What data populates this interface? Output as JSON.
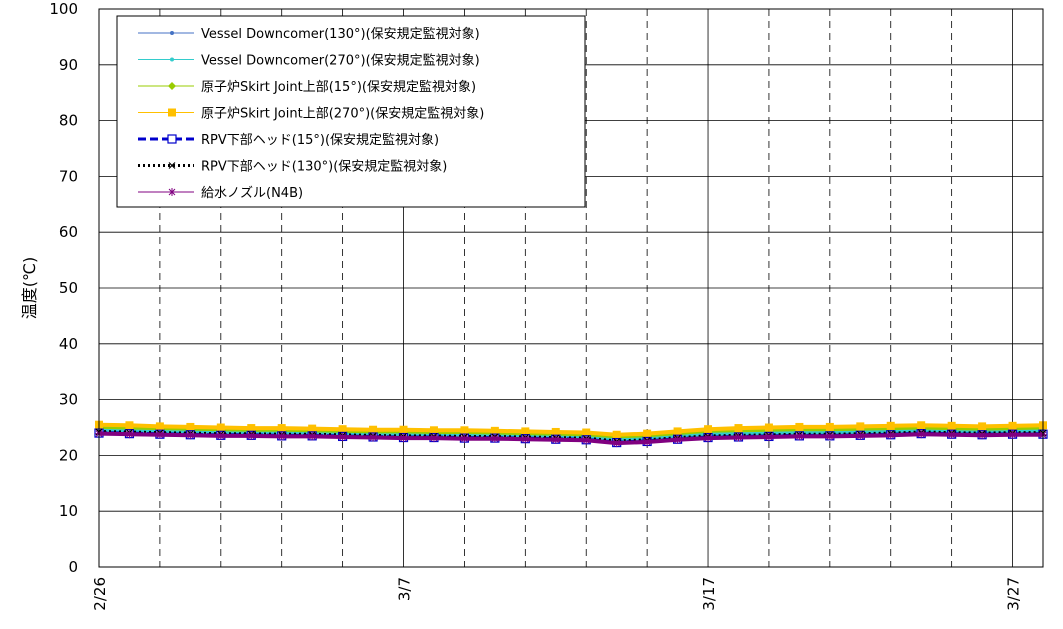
{
  "chart_data": {
    "type": "line",
    "title": "",
    "xlabel": "",
    "ylabel": "温度(℃)",
    "ylim": [
      0,
      100
    ],
    "y_ticks": [
      0,
      10,
      20,
      30,
      40,
      50,
      60,
      70,
      80,
      90,
      100
    ],
    "x_tick_labels": [
      {
        "date": "2/26",
        "label": "2/26"
      },
      {
        "date": "3/7",
        "label": "3/7"
      },
      {
        "date": "3/17",
        "label": "3/17"
      },
      {
        "date": "3/27",
        "label": "3/27"
      }
    ],
    "x_range": [
      "2/26",
      "3/28"
    ],
    "grid": {
      "horizontal": "solid",
      "vertical_major": "solid",
      "vertical_minor": "dashed"
    },
    "legend_position": "top-left",
    "x": [
      "2/26",
      "2/27",
      "2/28",
      "2/29",
      "3/1",
      "3/2",
      "3/3",
      "3/4",
      "3/5",
      "3/6",
      "3/7",
      "3/8",
      "3/9",
      "3/10",
      "3/11",
      "3/12",
      "3/13",
      "3/14",
      "3/15",
      "3/16",
      "3/17",
      "3/18",
      "3/19",
      "3/20",
      "3/21",
      "3/22",
      "3/23",
      "3/24",
      "3/25",
      "3/26",
      "3/27",
      "3/28"
    ],
    "series": [
      {
        "name": "Vessel Downcomer(130°)(保安規定監視対象)",
        "color": "#4472C4",
        "marker": "dot",
        "dash": "solid",
        "values": [
          24.3,
          24.2,
          24.1,
          24.0,
          23.9,
          23.9,
          23.8,
          23.8,
          23.7,
          23.6,
          23.5,
          23.5,
          23.4,
          23.4,
          23.3,
          23.2,
          23.1,
          22.6,
          22.8,
          23.2,
          23.5,
          23.6,
          23.7,
          23.8,
          23.8,
          23.9,
          24.0,
          24.2,
          24.1,
          24.0,
          24.1,
          24.1
        ]
      },
      {
        "name": "Vessel Downcomer(270°)(保安規定監視対象)",
        "color": "#33CCCC",
        "marker": "dot",
        "dash": "solid",
        "values": [
          24.6,
          24.5,
          24.4,
          24.3,
          24.2,
          24.2,
          24.1,
          24.1,
          24.0,
          23.9,
          23.9,
          23.8,
          23.8,
          23.7,
          23.6,
          23.5,
          23.4,
          23.0,
          23.2,
          23.6,
          23.9,
          24.0,
          24.1,
          24.2,
          24.2,
          24.3,
          24.4,
          24.6,
          24.5,
          24.4,
          24.5,
          24.5
        ]
      },
      {
        "name": "原子炉Skirt Joint上部(15°)(保安規定監視対象)",
        "color": "#99CC00",
        "marker": "diamond",
        "dash": "solid",
        "values": [
          25.1,
          25.0,
          24.9,
          24.8,
          24.7,
          24.6,
          24.6,
          24.5,
          24.4,
          24.3,
          24.3,
          24.2,
          24.2,
          24.1,
          24.0,
          23.9,
          23.8,
          23.4,
          23.6,
          24.0,
          24.4,
          24.5,
          24.6,
          24.7,
          24.7,
          24.8,
          24.9,
          25.0,
          24.9,
          24.8,
          24.9,
          25.0
        ]
      },
      {
        "name": "原子炉Skirt Joint上部(270°)(保安規定監視対象)",
        "color": "#FFC000",
        "marker": "square",
        "dash": "solid",
        "values": [
          25.5,
          25.4,
          25.2,
          25.1,
          25.0,
          24.9,
          24.9,
          24.8,
          24.7,
          24.6,
          24.6,
          24.5,
          24.5,
          24.4,
          24.3,
          24.2,
          24.1,
          23.7,
          23.9,
          24.3,
          24.7,
          24.9,
          25.0,
          25.1,
          25.1,
          25.2,
          25.3,
          25.4,
          25.3,
          25.2,
          25.3,
          25.4
        ]
      },
      {
        "name": "RPV下部ヘッド(15°)(保安規定監視対象)",
        "color": "#0000CC",
        "marker": "square-open",
        "dash": "dashed",
        "values": [
          24.0,
          23.9,
          23.8,
          23.7,
          23.6,
          23.6,
          23.5,
          23.5,
          23.4,
          23.3,
          23.2,
          23.2,
          23.1,
          23.1,
          23.0,
          22.9,
          22.8,
          22.3,
          22.5,
          22.9,
          23.2,
          23.3,
          23.4,
          23.5,
          23.5,
          23.6,
          23.7,
          23.9,
          23.8,
          23.7,
          23.8,
          23.8
        ]
      },
      {
        "name": "RPV下部ヘッド(130°)(保安規定監視対象)",
        "color": "#000000",
        "marker": "x",
        "dash": "dotted",
        "values": [
          24.2,
          24.1,
          24.0,
          23.9,
          23.8,
          23.8,
          23.7,
          23.7,
          23.6,
          23.5,
          23.4,
          23.4,
          23.3,
          23.3,
          23.2,
          23.1,
          23.0,
          22.5,
          22.7,
          23.1,
          23.4,
          23.5,
          23.6,
          23.7,
          23.7,
          23.8,
          23.9,
          24.1,
          24.0,
          23.9,
          24.0,
          24.0
        ]
      },
      {
        "name": "給水ノズル(N4B)",
        "color": "#800080",
        "marker": "asterisk",
        "dash": "solid",
        "values": [
          23.9,
          23.8,
          23.7,
          23.6,
          23.5,
          23.5,
          23.4,
          23.4,
          23.3,
          23.2,
          23.1,
          23.1,
          23.0,
          23.0,
          22.9,
          22.8,
          22.7,
          22.2,
          22.4,
          22.8,
          23.1,
          23.2,
          23.3,
          23.4,
          23.4,
          23.5,
          23.6,
          23.8,
          23.7,
          23.6,
          23.7,
          23.7
        ]
      }
    ]
  }
}
